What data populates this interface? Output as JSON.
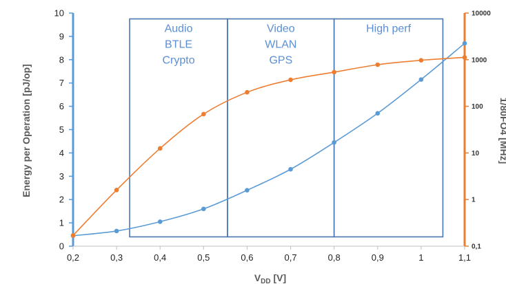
{
  "chart_data": {
    "type": "line",
    "title": "",
    "xlabel": "V",
    "xlabel_sub": "DD",
    "xlabel_unit": " [V]",
    "ylabel": "Energy per Operation [pJ/op]",
    "y2label": "1/80FO4 [MHz]",
    "x_ticks": [
      "0,2",
      "0,3",
      "0,4",
      "0,5",
      "0,6",
      "0,7",
      "0,8",
      "0,9",
      "1",
      "1,1"
    ],
    "xlim": [
      0.2,
      1.1
    ],
    "y_ticks": [
      "0",
      "1",
      "2",
      "3",
      "4",
      "5",
      "6",
      "7",
      "8",
      "9",
      "10"
    ],
    "ylim": [
      0,
      10
    ],
    "y2_ticks": [
      "0,1",
      "1",
      "10",
      "100",
      "1000",
      "10000"
    ],
    "y2lim": [
      0.1,
      10000
    ],
    "y2scale": "log",
    "grid": false,
    "series": [
      {
        "axis": "left",
        "color": "#5b9bd5",
        "x": [
          0.2,
          0.3,
          0.4,
          0.5,
          0.6,
          0.7,
          0.8,
          0.9,
          1.0,
          1.1
        ],
        "y": [
          0.45,
          0.65,
          1.05,
          1.6,
          2.4,
          3.3,
          4.45,
          5.7,
          7.15,
          8.7
        ]
      },
      {
        "axis": "right",
        "color": "#ed7d31",
        "x": [
          0.2,
          0.3,
          0.4,
          0.5,
          0.6,
          0.7,
          0.8,
          0.9,
          1.0,
          1.1
        ],
        "y": [
          0.17,
          1.6,
          12.5,
          68,
          200,
          370,
          540,
          780,
          970,
          1120
        ]
      }
    ],
    "regions": [
      {
        "x0": 0.33,
        "x1": 0.555,
        "lines": [
          "Audio",
          "BTLE",
          "Crypto"
        ]
      },
      {
        "x0": 0.555,
        "x1": 0.8,
        "lines": [
          "Video",
          "WLAN",
          "GPS"
        ]
      },
      {
        "x0": 0.8,
        "x1": 1.05,
        "lines": [
          "High perf"
        ]
      }
    ],
    "regions_ylim": [
      0.4,
      9.75
    ],
    "left_axis_color": "#5b9bd5",
    "right_axis_color": "#ed7d31",
    "region_color": "#5b8fd4"
  }
}
